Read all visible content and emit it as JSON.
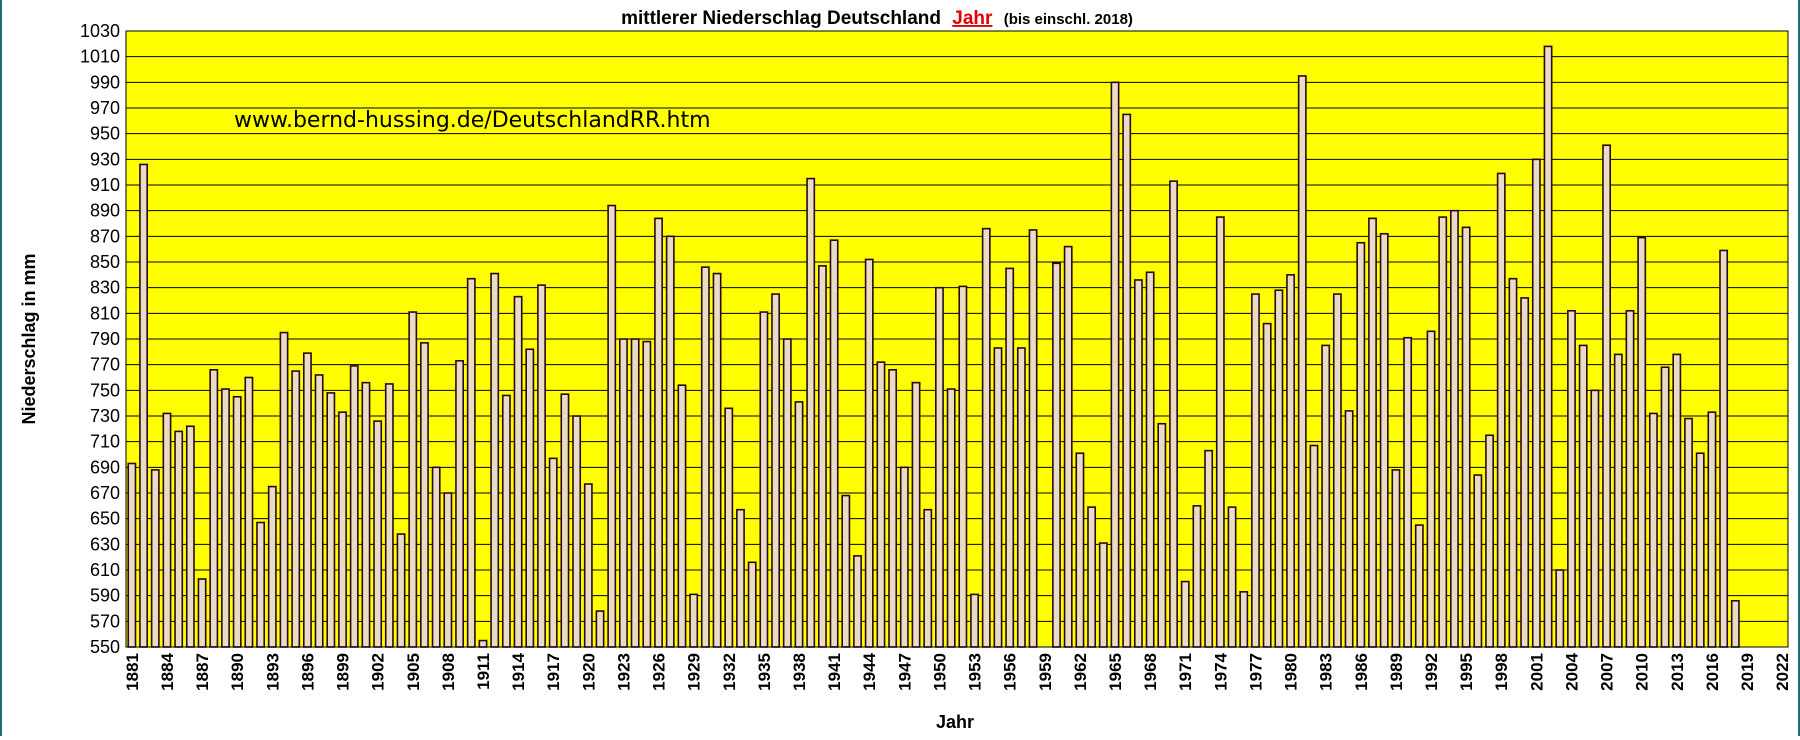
{
  "title": {
    "main": "mittlerer Niederschlag Deutschland",
    "highlight": "Jahr",
    "suffix": "(bis einschl. 2018)"
  },
  "watermark": "www.bernd-hussing.de/DeutschlandRR.htm",
  "colors": {
    "plot_bg": "#ffff00",
    "bar_fill": "#e8dcc8",
    "bar_stroke": "#2a0a10",
    "grid": "#000000",
    "highlight": "#e00000",
    "frame": "#1d6b6b"
  },
  "chart_data": {
    "type": "bar",
    "xlabel": "Jahr",
    "ylabel": "Niederschlag in mm",
    "ylim": [
      550,
      1030
    ],
    "ytick_step": 20,
    "yticks": [
      "550",
      "570",
      "590",
      "610",
      "630",
      "650",
      "670",
      "690",
      "710",
      "730",
      "750",
      "770",
      "790",
      "810",
      "830",
      "850",
      "870",
      "890",
      "910",
      "930",
      "950",
      "970",
      "990",
      "1010",
      "1030"
    ],
    "xrange": [
      1881,
      2022
    ],
    "xticks": [
      "1881",
      "1884",
      "1887",
      "1890",
      "1893",
      "1896",
      "1899",
      "1902",
      "1905",
      "1908",
      "1911",
      "1914",
      "1917",
      "1920",
      "1923",
      "1926",
      "1929",
      "1932",
      "1935",
      "1938",
      "1941",
      "1944",
      "1947",
      "1950",
      "1953",
      "1956",
      "1959",
      "1962",
      "1965",
      "1968",
      "1971",
      "1974",
      "1977",
      "1980",
      "1983",
      "1986",
      "1989",
      "1992",
      "1995",
      "1998",
      "2001",
      "2004",
      "2007",
      "2010",
      "2013",
      "2016",
      "2019",
      "2022"
    ],
    "grid": true,
    "series": [
      {
        "x": [
          1881,
          1882,
          1883,
          1884,
          1885,
          1886,
          1887,
          1888,
          1889,
          1890,
          1891,
          1892,
          1893,
          1894,
          1895,
          1896,
          1897,
          1898,
          1899,
          1900,
          1901,
          1902,
          1903,
          1904,
          1905,
          1906,
          1907,
          1908,
          1909,
          1910,
          1911,
          1912,
          1913,
          1914,
          1915,
          1916,
          1917,
          1918,
          1919,
          1920,
          1921,
          1922,
          1923,
          1924,
          1925,
          1926,
          1927,
          1928,
          1929,
          1930,
          1931,
          1932,
          1933,
          1934,
          1935,
          1936,
          1937,
          1938,
          1939,
          1940,
          1941,
          1942,
          1943,
          1944,
          1945,
          1946,
          1947,
          1948,
          1949,
          1950,
          1951,
          1952,
          1953,
          1954,
          1955,
          1956,
          1957,
          1958,
          1959,
          1960,
          1961,
          1962,
          1963,
          1964,
          1965,
          1966,
          1967,
          1968,
          1969,
          1970,
          1971,
          1972,
          1973,
          1974,
          1975,
          1976,
          1977,
          1978,
          1979,
          1980,
          1981,
          1982,
          1983,
          1984,
          1985,
          1986,
          1987,
          1988,
          1989,
          1990,
          1991,
          1992,
          1993,
          1994,
          1995,
          1996,
          1997,
          1998,
          1999,
          2000,
          2001,
          2002,
          2003,
          2004,
          2005,
          2006,
          2007,
          2008,
          2009,
          2010,
          2011,
          2012,
          2013,
          2014,
          2015,
          2016,
          2017,
          2018
        ],
        "values": [
          693,
          926,
          688,
          732,
          718,
          722,
          603,
          766,
          751,
          745,
          760,
          647,
          675,
          795,
          765,
          779,
          762,
          748,
          733,
          769,
          756,
          726,
          755,
          638,
          811,
          787,
          690,
          670,
          773,
          837,
          555,
          841,
          746,
          823,
          782,
          832,
          697,
          747,
          730,
          677,
          578,
          894,
          790,
          790,
          788,
          884,
          870,
          754,
          591,
          846,
          841,
          736,
          657,
          616,
          811,
          825,
          790,
          741,
          915,
          847,
          867,
          668,
          621,
          852,
          772,
          766,
          690,
          756,
          657,
          830,
          751,
          831,
          591,
          876,
          783,
          845,
          783,
          875,
          550,
          849,
          862,
          701,
          659,
          631,
          990,
          965,
          836,
          842,
          724,
          913,
          601,
          660,
          703,
          885,
          659,
          593,
          825,
          802,
          828,
          840,
          995,
          707,
          785,
          825,
          734,
          865,
          884,
          872,
          688,
          791,
          645,
          796,
          885,
          890,
          877,
          684,
          715,
          919,
          837,
          822,
          930,
          1018,
          610,
          812,
          785,
          750,
          941,
          778,
          812,
          869,
          732,
          768,
          778,
          728,
          701,
          733,
          859,
          586
        ]
      }
    ]
  }
}
